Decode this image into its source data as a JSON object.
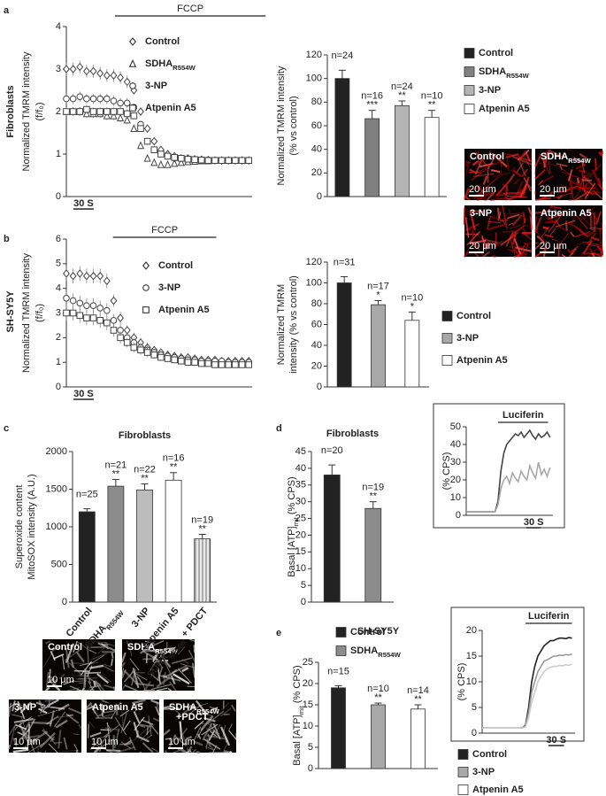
{
  "subscripts": [
    "R554W",
    "mit"
  ],
  "panel_labels": [
    "a",
    "b",
    "c",
    "d",
    "e"
  ],
  "side_labels": [
    "Fibroblasts",
    "SH-SY5Y"
  ],
  "micrographs_a": [
    {
      "label": [
        "Control"
      ],
      "scale": "20 µm"
    },
    {
      "label": [
        "SDHAR554W"
      ],
      "scale": "20 µm"
    },
    {
      "label": [
        "3-NP"
      ],
      "scale": "20 µm"
    },
    {
      "label": [
        "Atpenin A5"
      ],
      "scale": "20 µm"
    }
  ],
  "micrographs_c": [
    {
      "label": [
        "Control"
      ],
      "scale": "10 µm"
    },
    {
      "label": [
        "SDHAR554W"
      ],
      "scale": null
    },
    {
      "label": [
        "3-NP"
      ],
      "scale": "10 µm"
    },
    {
      "label": [
        "Atpenin A5"
      ],
      "scale": "10 µm"
    },
    {
      "label": [
        "SDHAR554W",
        "+PDCT"
      ],
      "scale": "10 µm"
    }
  ],
  "chart_data": [
    {
      "type": "scatter",
      "ylabel": [
        "Normalized TMRM intensity",
        "(f/f₀)"
      ],
      "x": [
        0,
        10,
        20,
        30,
        40,
        50,
        60,
        70,
        80,
        90,
        100,
        110,
        120,
        130,
        140,
        150,
        160,
        170,
        180,
        190,
        200,
        210,
        220,
        230,
        240,
        250,
        260,
        270
      ],
      "xlim": [
        0,
        275
      ],
      "ylim": [
        0,
        4
      ],
      "yticks": [
        0,
        1,
        2,
        3,
        4
      ],
      "annotation": {
        "label": "FCCP",
        "x": [
          72,
          295
        ]
      },
      "scalebar": {
        "value": 30,
        "label": "30 S"
      },
      "series": [
        {
          "name": "Control",
          "marker": "diamond",
          "color": "#444444",
          "values": [
            3.0,
            3.0,
            3.05,
            2.95,
            2.95,
            2.9,
            2.85,
            2.85,
            2.8,
            2.7,
            2.5,
            2.0,
            1.6,
            1.3,
            1.1,
            1.0,
            0.95,
            0.9,
            0.9,
            0.88,
            0.87,
            0.86,
            0.85,
            0.85,
            0.85,
            0.85,
            0.85,
            0.85
          ],
          "errors": [
            0.15,
            0.15,
            0.15,
            0.15,
            0.15,
            0.15,
            0.15,
            0.15,
            0.15,
            0.15,
            0.1,
            0.1,
            0.1,
            0.1,
            0.05,
            0.05,
            0.05,
            0.05,
            0.05,
            0.05,
            0.05,
            0.05,
            0.05,
            0.05,
            0.05,
            0.05,
            0.05,
            0.05
          ]
        },
        {
          "name": "SDHAR554W",
          "marker": "triangle",
          "color": "#444444",
          "values": [
            2.0,
            2.0,
            2.0,
            1.95,
            1.95,
            1.95,
            1.9,
            1.9,
            1.85,
            1.8,
            1.6,
            1.2,
            0.9,
            0.8,
            0.75,
            0.75,
            0.78,
            0.8,
            0.82,
            0.83,
            0.84,
            0.84,
            0.85,
            0.85,
            0.85,
            0.85,
            0.85,
            0.85
          ],
          "errors": [
            0.1,
            0.1,
            0.1,
            0.1,
            0.1,
            0.1,
            0.1,
            0.1,
            0.1,
            0.1,
            0.08,
            0.08,
            0.08,
            0.08,
            0.05,
            0.05,
            0.05,
            0.05,
            0.05,
            0.05,
            0.05,
            0.05,
            0.05,
            0.05,
            0.05,
            0.05,
            0.05,
            0.05
          ]
        },
        {
          "name": "3-NP",
          "marker": "circle",
          "color": "#444444",
          "values": [
            2.3,
            2.3,
            2.35,
            2.3,
            2.3,
            2.3,
            2.3,
            2.25,
            2.2,
            2.2,
            2.1,
            1.7,
            1.3,
            1.1,
            1.0,
            0.95,
            0.9,
            0.9,
            0.88,
            0.87,
            0.86,
            0.86,
            0.85,
            0.85,
            0.85,
            0.85,
            0.85,
            0.85
          ],
          "errors": [
            0.12,
            0.12,
            0.12,
            0.12,
            0.12,
            0.12,
            0.12,
            0.12,
            0.12,
            0.12,
            0.08,
            0.08,
            0.08,
            0.08,
            0.05,
            0.05,
            0.05,
            0.05,
            0.05,
            0.05,
            0.05,
            0.05,
            0.05,
            0.05,
            0.05,
            0.05,
            0.05,
            0.05
          ]
        },
        {
          "name": "Atpenin A5",
          "marker": "square",
          "color": "#444444",
          "values": [
            2.0,
            2.0,
            2.0,
            2.05,
            2.0,
            2.0,
            2.0,
            2.0,
            2.0,
            1.95,
            1.9,
            1.6,
            1.3,
            1.1,
            1.0,
            0.95,
            0.92,
            0.9,
            0.88,
            0.87,
            0.86,
            0.85,
            0.85,
            0.85,
            0.85,
            0.85,
            0.85,
            0.85
          ],
          "errors": [
            0.1,
            0.1,
            0.1,
            0.1,
            0.1,
            0.1,
            0.1,
            0.1,
            0.1,
            0.1,
            0.08,
            0.08,
            0.08,
            0.08,
            0.05,
            0.05,
            0.05,
            0.05,
            0.05,
            0.05,
            0.05,
            0.05,
            0.05,
            0.05,
            0.05,
            0.05,
            0.05,
            0.05
          ]
        }
      ]
    },
    {
      "type": "bar",
      "ylabel": [
        "Normalized TMRM intensity",
        "(% vs control)"
      ],
      "categories": [
        "Control",
        "SDHAR554W",
        "3-NP",
        "Atpenin A5"
      ],
      "values": [
        100,
        66,
        77,
        67
      ],
      "errors": [
        7,
        7,
        4,
        6
      ],
      "colors": [
        "#222222",
        "#808080",
        "#b4b4b4",
        "#ffffff"
      ],
      "hatch": [
        false,
        false,
        false,
        false
      ],
      "n_labels": [
        "n=24",
        "n=16",
        "n=24",
        "n=10"
      ],
      "significance": [
        null,
        "***",
        "**",
        "**"
      ],
      "ylim": [
        0,
        120
      ],
      "yticks": [
        0,
        20,
        40,
        60,
        80,
        100,
        120
      ],
      "legend": "right"
    },
    {
      "type": "scatter",
      "ylabel": [
        "Normalized TMRM intensity",
        "(f/f₀)"
      ],
      "x": [
        0,
        10,
        20,
        30,
        40,
        50,
        60,
        70,
        80,
        90,
        100,
        110,
        120,
        130,
        140,
        150,
        160,
        170,
        180,
        190,
        200,
        210,
        220,
        230,
        240,
        250,
        260,
        270
      ],
      "xlim": [
        0,
        275
      ],
      "ylim": [
        0,
        6
      ],
      "yticks": [
        0,
        1,
        2,
        3,
        4,
        5,
        6
      ],
      "annotation": {
        "label": "FCCP",
        "x": [
          69,
          222
        ]
      },
      "scalebar": {
        "value": 30,
        "label": "30 S"
      },
      "series": [
        {
          "name": "Control",
          "marker": "diamond",
          "color": "#444444",
          "values": [
            4.6,
            4.5,
            4.6,
            4.5,
            4.5,
            4.5,
            4.3,
            3.5,
            2.8,
            2.3,
            2.0,
            1.8,
            1.6,
            1.5,
            1.4,
            1.3,
            1.25,
            1.2,
            1.2,
            1.15,
            1.1,
            1.1,
            1.1,
            1.05,
            1.05,
            1.05,
            1.05,
            1.05
          ],
          "errors": [
            0.3,
            0.3,
            0.3,
            0.3,
            0.3,
            0.3,
            0.3,
            0.25,
            0.25,
            0.2,
            0.2,
            0.2,
            0.2,
            0.15,
            0.15,
            0.15,
            0.15,
            0.15,
            0.15,
            0.15,
            0.1,
            0.1,
            0.1,
            0.1,
            0.1,
            0.1,
            0.1,
            0.1
          ]
        },
        {
          "name": "3-NP",
          "marker": "circle",
          "color": "#444444",
          "values": [
            3.6,
            3.5,
            3.4,
            3.3,
            3.3,
            3.2,
            3.1,
            2.7,
            2.3,
            2.0,
            1.8,
            1.6,
            1.5,
            1.4,
            1.3,
            1.25,
            1.2,
            1.15,
            1.1,
            1.1,
            1.05,
            1.05,
            1.05,
            1.05,
            1.0,
            1.0,
            1.0,
            1.0
          ],
          "errors": [
            0.3,
            0.3,
            0.3,
            0.3,
            0.3,
            0.3,
            0.3,
            0.25,
            0.25,
            0.2,
            0.2,
            0.2,
            0.2,
            0.15,
            0.15,
            0.15,
            0.15,
            0.15,
            0.15,
            0.15,
            0.1,
            0.1,
            0.1,
            0.1,
            0.1,
            0.1,
            0.1,
            0.1
          ]
        },
        {
          "name": "Atpenin A5",
          "marker": "square",
          "color": "#444444",
          "values": [
            3.0,
            3.0,
            2.9,
            2.8,
            2.8,
            2.7,
            2.6,
            2.3,
            2.0,
            1.8,
            1.6,
            1.5,
            1.4,
            1.3,
            1.2,
            1.15,
            1.1,
            1.05,
            1.0,
            1.0,
            0.95,
            0.95,
            0.9,
            0.9,
            0.9,
            0.9,
            0.9,
            0.9
          ],
          "errors": [
            0.3,
            0.3,
            0.3,
            0.3,
            0.3,
            0.3,
            0.3,
            0.25,
            0.25,
            0.2,
            0.2,
            0.2,
            0.2,
            0.15,
            0.15,
            0.15,
            0.15,
            0.15,
            0.15,
            0.15,
            0.1,
            0.1,
            0.1,
            0.1,
            0.1,
            0.1,
            0.1,
            0.1
          ]
        }
      ]
    },
    {
      "type": "bar",
      "ylabel": [
        "Normalized TMRM",
        "intensity (% vs control)"
      ],
      "categories": [
        "Control",
        "3-NP",
        "Atpenin A5"
      ],
      "values": [
        100,
        79,
        64
      ],
      "errors": [
        6,
        4,
        8
      ],
      "colors": [
        "#222222",
        "#a8a8a8",
        "#ffffff"
      ],
      "hatch": [
        false,
        false,
        false
      ],
      "n_labels": [
        "n=31",
        "n=17",
        "n=10"
      ],
      "significance": [
        null,
        "*",
        "*"
      ],
      "ylim": [
        0,
        120
      ],
      "yticks": [
        0,
        20,
        40,
        60,
        80,
        100,
        120
      ],
      "legend": "right"
    },
    {
      "type": "bar",
      "title": "Fibroblasts",
      "ylabel": [
        "Superoxide content",
        "MitoSOX intensity (A.U.)"
      ],
      "categories": [
        "Control",
        "SDHAR554W",
        "3-NP",
        "Atpenin A5",
        "SDHAR554W + PDCT"
      ],
      "values": [
        1200,
        1540,
        1490,
        1620,
        840
      ],
      "errors": [
        40,
        90,
        80,
        100,
        60
      ],
      "colors": [
        "#222222",
        "#8c8c8c",
        "#bcbcbc",
        "#ffffff",
        "#d8d8d8"
      ],
      "hatch": [
        false,
        false,
        false,
        false,
        true
      ],
      "n_labels": [
        "n=25",
        "n=21",
        "n=22",
        "n=16",
        "n=19"
      ],
      "significance": [
        null,
        "**",
        "**",
        "**",
        "**"
      ],
      "ylim": [
        0,
        2000
      ],
      "yticks": [
        0,
        500,
        1000,
        1500,
        2000
      ],
      "legend": null
    },
    {
      "type": "bar",
      "title": "Fibroblasts",
      "ylabel": [
        "Basal [ATP]mit (% CPS)"
      ],
      "categories": [
        "Control",
        "SDHAR554W"
      ],
      "values": [
        38,
        28
      ],
      "errors": [
        3,
        2
      ],
      "colors": [
        "#222222",
        "#8c8c8c"
      ],
      "hatch": [
        false,
        false
      ],
      "n_labels": [
        "n=20",
        "n=19"
      ],
      "significance": [
        null,
        "**"
      ],
      "ylim": [
        0,
        45
      ],
      "yticks": [
        0,
        5,
        10,
        15,
        20,
        25,
        30,
        35,
        40,
        45
      ],
      "legend": "below"
    },
    {
      "type": "line",
      "ylabel": [
        "(% CPS)"
      ],
      "x": [
        0,
        6,
        12,
        18,
        24,
        30,
        36,
        42,
        48,
        54,
        60,
        66,
        72,
        78,
        84,
        90,
        96,
        102,
        108,
        114,
        120,
        126,
        132,
        138,
        144,
        150,
        156,
        162,
        168,
        174
      ],
      "xlim": [
        0,
        180
      ],
      "ylim": [
        0,
        50
      ],
      "yticks": [
        0,
        10,
        20,
        30,
        40,
        50
      ],
      "annotation": {
        "label": "Luciferin",
        "x": [
          66,
          170
        ]
      },
      "scalebar": {
        "value": 30,
        "label": "30 S"
      },
      "series": [
        {
          "color": "#444444",
          "values": [
            2,
            2,
            2,
            2,
            2,
            2,
            2,
            2,
            2,
            2,
            2,
            8,
            25,
            35,
            40,
            42,
            44,
            46,
            45,
            47,
            44,
            46,
            48,
            45,
            43,
            46,
            44,
            45,
            47,
            44
          ]
        },
        {
          "color": "#a8a8a8",
          "values": [
            2,
            2,
            2,
            2,
            2,
            2,
            2,
            2,
            2,
            2,
            2,
            6,
            15,
            20,
            22,
            18,
            24,
            21,
            19,
            25,
            22,
            20,
            28,
            24,
            21,
            30,
            23,
            26,
            22,
            27
          ]
        }
      ]
    },
    {
      "type": "bar",
      "title": "SH-SY5Y",
      "ylabel": [
        "Basal [ATP]mit (% CPS)"
      ],
      "categories": [
        "Control",
        "3-NP",
        "Atpenin A5"
      ],
      "values": [
        19,
        15,
        14
      ],
      "errors": [
        0.5,
        0.4,
        1
      ],
      "colors": [
        "#222222",
        "#a8a8a8",
        "#ffffff"
      ],
      "hatch": [
        false,
        false,
        false
      ],
      "n_labels": [
        "n=15",
        "n=10",
        "n=14"
      ],
      "significance": [
        null,
        "**",
        "**"
      ],
      "ylim": [
        0,
        25
      ],
      "yticks": [
        0,
        5,
        10,
        15,
        20,
        25
      ],
      "legend": "below"
    },
    {
      "type": "line",
      "ylabel": [
        "(% CPS)"
      ],
      "x": [
        0,
        6,
        12,
        18,
        24,
        30,
        36,
        42,
        48,
        54,
        60,
        66,
        72,
        78,
        84,
        90,
        96,
        102,
        108,
        114,
        120,
        126,
        132,
        138,
        144,
        150,
        156,
        162,
        168,
        174
      ],
      "xlim": [
        0,
        180
      ],
      "ylim": [
        0,
        20
      ],
      "yticks": [
        0,
        5,
        10,
        15,
        20
      ],
      "annotation": {
        "label": "Luciferin",
        "x": [
          84,
          174
        ]
      },
      "scalebar": {
        "value": 30,
        "label": "30 S"
      },
      "series": [
        {
          "color": "#222222",
          "values": [
            1,
            1,
            1,
            1,
            1,
            1,
            1,
            1,
            1,
            1,
            1,
            1,
            1,
            1,
            1.5,
            5,
            10,
            13,
            15,
            16,
            17,
            17.5,
            18,
            18,
            18.3,
            18.5,
            18.5,
            18.4,
            18.6,
            18.5
          ]
        },
        {
          "color": "#999999",
          "values": [
            1,
            1,
            1,
            1,
            1,
            1,
            1,
            1,
            1,
            1,
            1,
            1,
            1,
            1,
            1.3,
            4,
            8,
            10,
            12,
            13,
            14,
            14.3,
            14.6,
            15,
            15,
            15.2,
            15.1,
            15.3,
            15.2,
            15.4
          ]
        },
        {
          "color": "#cccccc",
          "values": [
            1,
            1,
            1,
            1,
            1,
            1,
            1,
            1,
            1,
            1,
            1,
            1,
            1,
            1,
            1.2,
            3,
            6,
            8,
            10,
            11,
            12,
            12.5,
            12.8,
            13,
            13,
            13.2,
            13.1,
            13.3,
            13.2,
            13.4
          ]
        }
      ]
    }
  ]
}
